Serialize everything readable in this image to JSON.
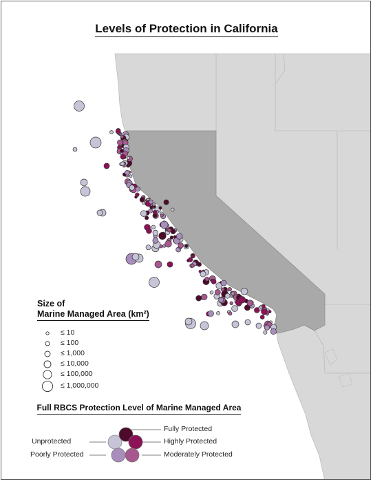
{
  "title": "Levels of Protection in California",
  "colors": {
    "fully": "#4d0a2b",
    "highly": "#8c1156",
    "moderately": "#a8588f",
    "poorly": "#a98dbd",
    "unprotected": "#c7c4d7",
    "land_state": "#a9a9a9",
    "land_other": "#d8d8d8",
    "ocean": "#ffffff"
  },
  "size_legend": {
    "title_line1": "Size of",
    "title_line2": "Marine Managed Area (km²)",
    "items": [
      "≤ 10",
      "≤ 100",
      "≤ 1,000",
      "≤ 10,000",
      "≤ 100,000",
      "≤ 1,000,000"
    ]
  },
  "protection_legend": {
    "title": "Full RBCS Protection Level of Marine Managed Area",
    "fully": "Fully Protected",
    "highly": "Highly Protected",
    "moderately": "Moderately Protected",
    "poorly": "Poorly Protected",
    "unprotected": "Unprotected"
  }
}
